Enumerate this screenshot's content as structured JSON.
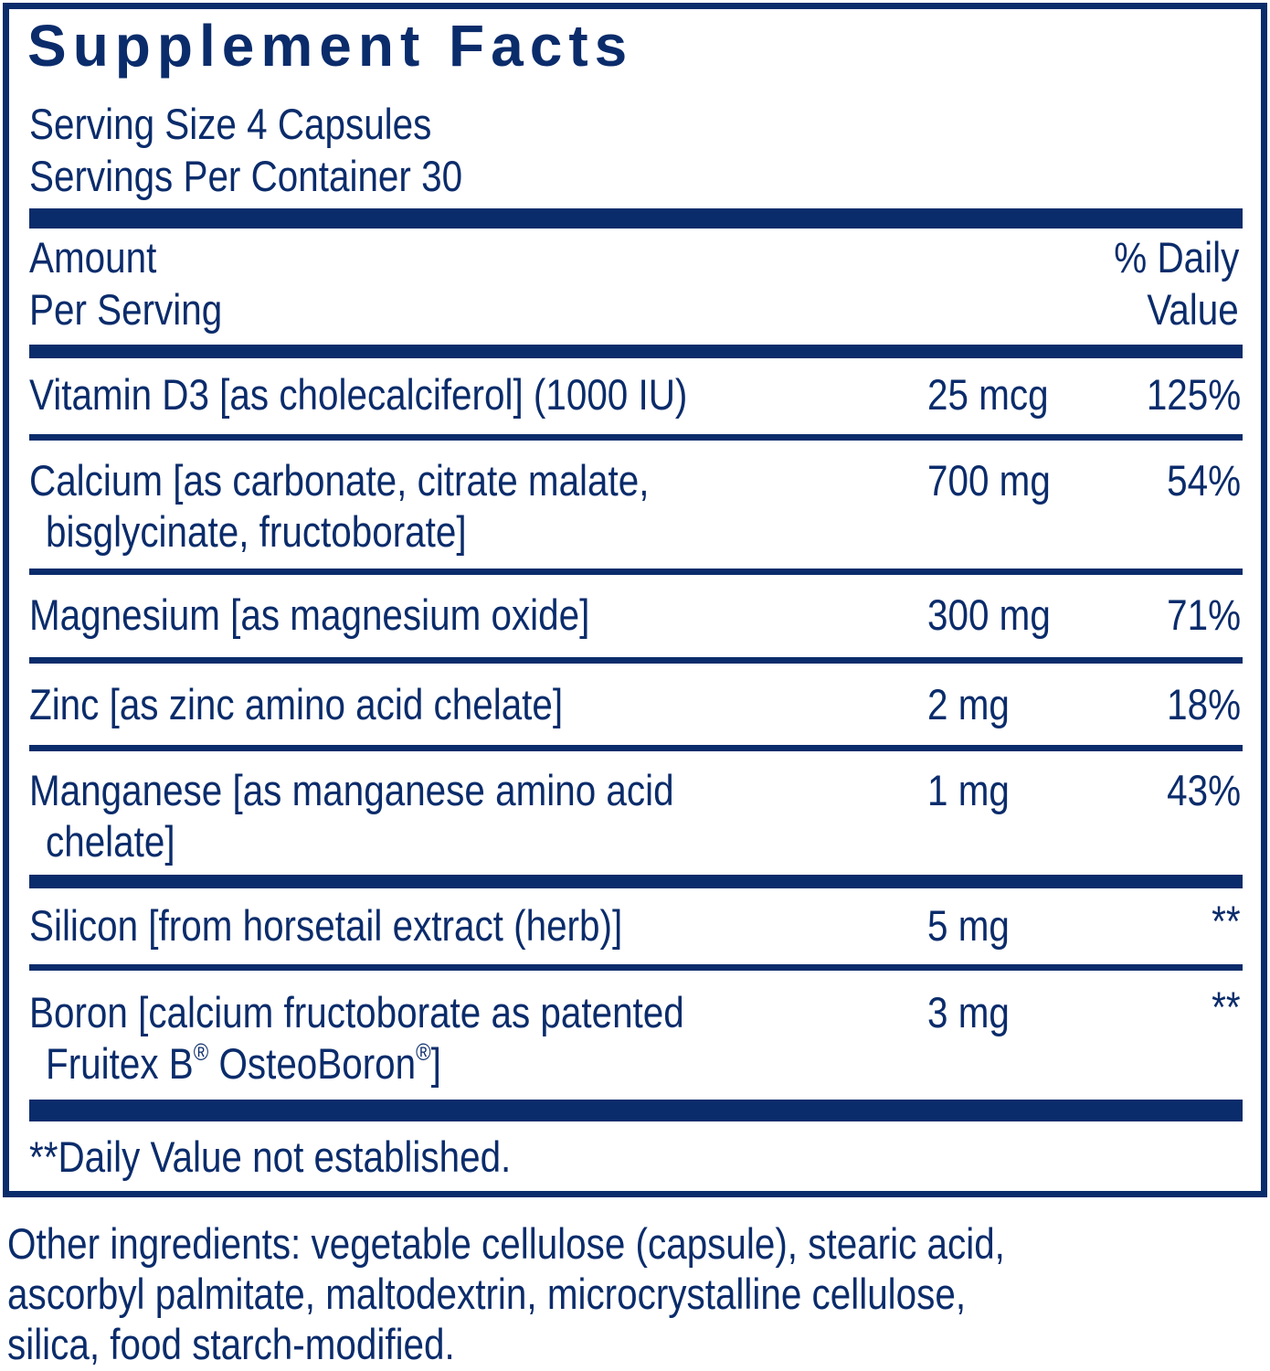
{
  "title": "Supplement Facts",
  "serving_size": "Serving Size 4 Capsules",
  "servings_per_container": "Servings Per Container 30",
  "header": {
    "amount_line1": "Amount",
    "amount_line2": "Per Serving",
    "dv_line1": "% Daily",
    "dv_line2": "Value"
  },
  "rows": [
    {
      "line1": "Vitamin D3 [as cholecalciferol] (1000 IU)",
      "amount": "25 mcg",
      "dv": "125%"
    },
    {
      "line1": "Calcium [as carbonate, citrate malate,",
      "line2": "bisglycinate, fructoborate]",
      "amount": "700 mg",
      "dv": "54%"
    },
    {
      "line1": "Magnesium [as magnesium oxide]",
      "amount": "300 mg",
      "dv": "71%"
    },
    {
      "line1": "Zinc [as zinc amino acid chelate]",
      "amount": "2 mg",
      "dv": "18%"
    },
    {
      "line1": "Manganese [as manganese amino acid",
      "line2": "chelate]",
      "amount": "1 mg",
      "dv": "43%"
    },
    {
      "line1": "Silicon [from horsetail extract (herb)]",
      "amount": "5 mg",
      "dv": "**"
    },
    {
      "line1": "Boron [calcium fructoborate as patented",
      "line2a": "Fruitex B",
      "line2b": " OsteoBoron",
      "line2c": "]",
      "reg": "®",
      "amount": "3 mg",
      "dv": "**"
    }
  ],
  "footnote": "**Daily Value not established.",
  "other_ingredients": [
    "Other ingredients: vegetable cellulose (capsule), stearic acid,",
    "ascorbyl palmitate, maltodextrin, microcrystalline cellulose,",
    "silica, food starch-modified."
  ],
  "colors": {
    "label_blue": "#0b2c6b"
  }
}
